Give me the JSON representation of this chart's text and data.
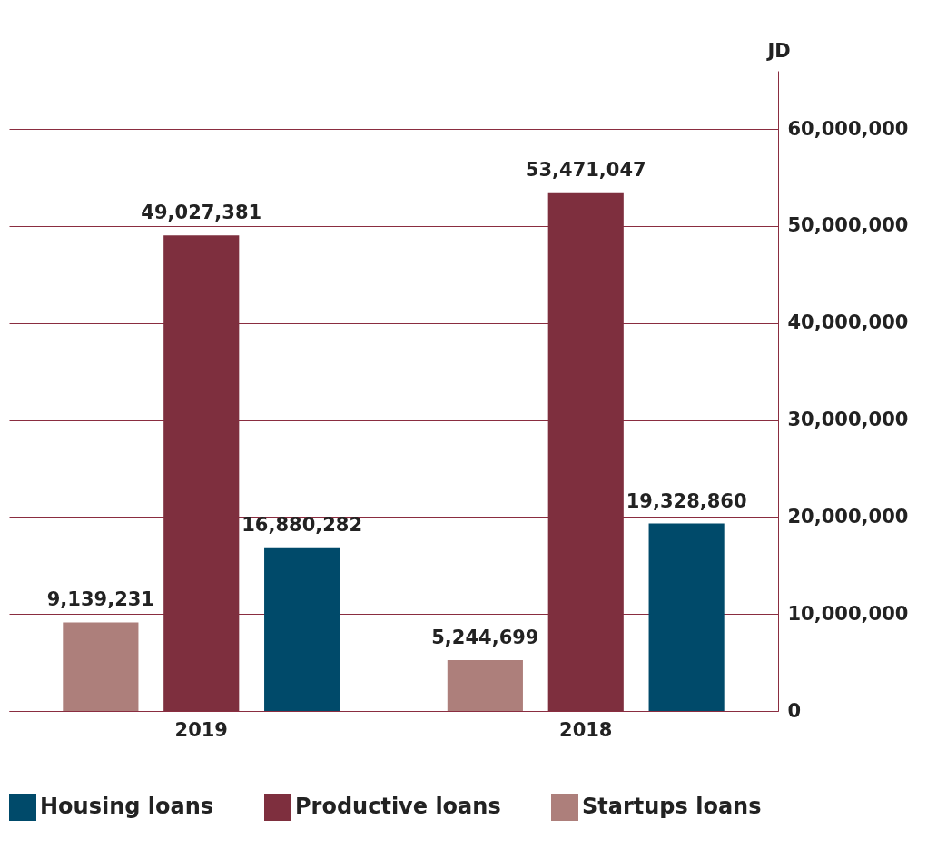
{
  "chart_data": {
    "type": "bar",
    "ylabel": "JD",
    "categories": [
      "2019",
      "2018"
    ],
    "series": [
      {
        "name": "Housing loans",
        "color": "#004a6a",
        "values": [
          16880282,
          19328860
        ],
        "value_labels": [
          "16,880,282",
          "19,328,860"
        ]
      },
      {
        "name": "Productive loans",
        "color": "#7e2f3e",
        "values": [
          49027381,
          53471047
        ],
        "value_labels": [
          "49,027,381",
          "53,471,047"
        ]
      },
      {
        "name": "Startups loans",
        "color": "#ad7f7b",
        "values": [
          9139231,
          5244699
        ],
        "value_labels": [
          "9,139,231",
          "5,244,699"
        ]
      }
    ],
    "ylim": [
      0,
      66000000
    ],
    "yticks": [
      {
        "value": 0,
        "label": "0"
      },
      {
        "value": 10000000,
        "label": "10,000,000"
      },
      {
        "value": 20000000,
        "label": "20,000,000"
      },
      {
        "value": 30000000,
        "label": "30,000,000"
      },
      {
        "value": 40000000,
        "label": "40,000,000"
      },
      {
        "value": 50000000,
        "label": "50,000,000"
      },
      {
        "value": 60000000,
        "label": "60,000,000"
      }
    ],
    "grid": "y",
    "legend": "bottom"
  }
}
